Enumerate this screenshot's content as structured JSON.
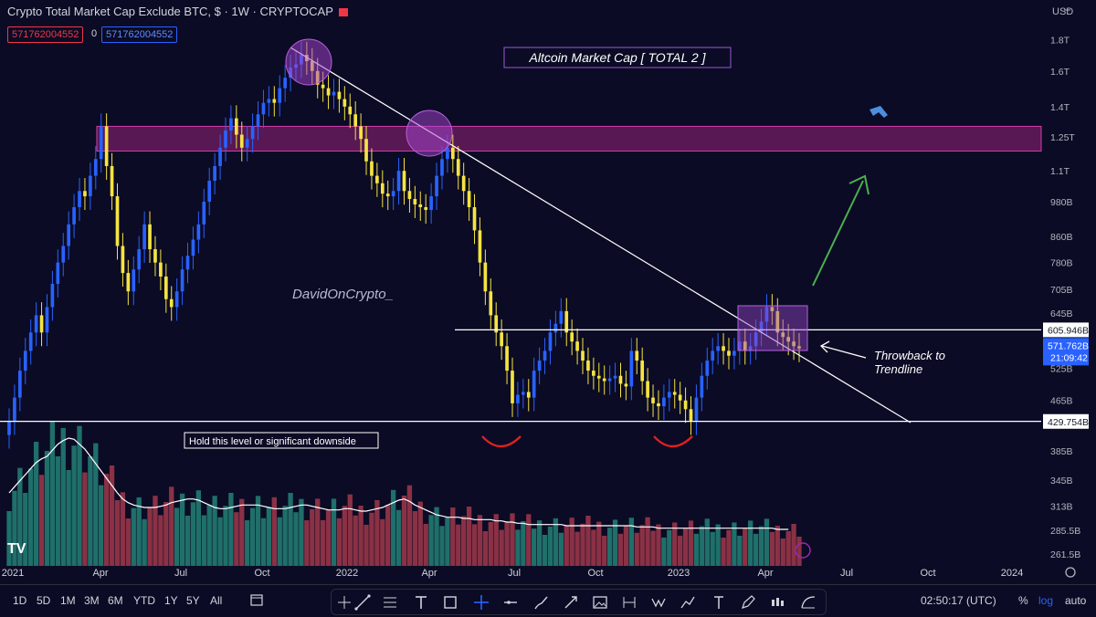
{
  "header": {
    "title": "Crypto Total Market Cap Exclude BTC, $ · 1W · CRYPTOCAP",
    "open_badge": "571762004552",
    "change_badge": "0",
    "close_badge": "571762004552"
  },
  "chart_data": {
    "type": "candlestick",
    "title": "Altcoin Market Cap [ TOTAL 2 ]",
    "watermark": "DavidOnCrypto_",
    "currency_label": "USD",
    "scale": "log",
    "ylim_b": [
      250,
      1950
    ],
    "x_ticks": [
      "2021",
      "Apr",
      "Jul",
      "Oct",
      "2022",
      "Apr",
      "Jul",
      "Oct",
      "2023",
      "Apr",
      "Jul",
      "Oct",
      "2024"
    ],
    "y_ticks": [
      {
        "value": 1800,
        "label": "1.8T"
      },
      {
        "value": 1600,
        "label": "1.6T"
      },
      {
        "value": 1400,
        "label": "1.4T"
      },
      {
        "value": 1250,
        "label": "1.25T"
      },
      {
        "value": 1100,
        "label": "1.1T"
      },
      {
        "value": 980,
        "label": "980B"
      },
      {
        "value": 860,
        "label": "860B"
      },
      {
        "value": 780,
        "label": "780B"
      },
      {
        "value": 705,
        "label": "705B"
      },
      {
        "value": 645,
        "label": "645B"
      },
      {
        "value": 525,
        "label": "525B"
      },
      {
        "value": 465,
        "label": "465B"
      },
      {
        "value": 385,
        "label": "385B"
      },
      {
        "value": 345,
        "label": "345B"
      },
      {
        "value": 313,
        "label": "313B"
      },
      {
        "value": 285.5,
        "label": "285.5B"
      },
      {
        "value": 261.5,
        "label": "261.5B"
      }
    ],
    "price_labels": [
      {
        "value": 605.946,
        "label": "605.946B",
        "style": "white"
      },
      {
        "value": 571.762,
        "label": "571.762B",
        "sub": "21:09:42",
        "style": "blue"
      },
      {
        "value": 429.754,
        "label": "429.754B",
        "style": "white"
      }
    ],
    "annotations": {
      "support_label": "Hold this level or significant downside",
      "throwback_label": "Throwback to\nTrendline"
    },
    "levels": {
      "resistance_zone": [
        1185,
        1300
      ],
      "mid_line": 606,
      "support_line": 430
    },
    "series_weekly_close_b": [
      430,
      470,
      520,
      560,
      600,
      640,
      600,
      660,
      720,
      780,
      830,
      900,
      960,
      1020,
      1000,
      1080,
      1150,
      1300,
      1120,
      1000,
      830,
      750,
      700,
      760,
      820,
      900,
      820,
      780,
      740,
      680,
      660,
      700,
      760,
      800,
      850,
      900,
      980,
      1060,
      1120,
      1200,
      1280,
      1340,
      1260,
      1200,
      1240,
      1300,
      1360,
      1420,
      1440,
      1420,
      1500,
      1560,
      1620,
      1640,
      1700,
      1660,
      1600,
      1520,
      1500,
      1460,
      1480,
      1440,
      1400,
      1360,
      1300,
      1240,
      1140,
      1080,
      1050,
      1010,
      1000,
      1020,
      1100,
      1020,
      990,
      970,
      960,
      950,
      1000,
      1080,
      1150,
      1200,
      1150,
      1080,
      1020,
      960,
      880,
      780,
      700,
      640,
      600,
      570,
      520,
      460,
      475,
      480,
      470,
      520,
      540,
      560,
      600,
      620,
      650,
      600,
      580,
      560,
      540,
      520,
      510,
      505,
      500,
      505,
      510,
      495,
      490,
      560,
      540,
      500,
      470,
      460,
      455,
      470,
      480,
      475,
      465,
      450,
      430,
      470,
      510,
      540,
      560,
      570,
      560,
      550,
      560,
      580,
      560,
      570,
      600,
      625,
      660,
      650,
      600,
      590,
      580,
      570,
      565
    ],
    "volume_max_b": 120,
    "volume_ma_b": [
      60,
      65,
      70,
      75,
      80,
      85,
      88,
      90,
      95,
      100,
      103,
      105,
      104,
      100,
      96,
      90,
      84,
      78,
      72,
      66,
      60,
      55,
      52,
      50,
      49,
      48,
      48,
      48,
      49,
      50,
      52,
      53,
      54,
      55,
      55,
      54,
      52,
      50,
      48,
      47,
      47,
      48,
      49,
      50,
      50,
      50,
      50,
      49,
      48,
      47,
      47,
      47,
      48,
      49,
      50,
      50,
      49,
      48,
      47,
      46,
      46,
      46,
      47,
      47,
      46,
      45,
      45,
      46,
      47,
      48,
      50,
      52,
      54,
      55,
      53,
      50,
      48,
      46,
      44,
      42,
      41,
      40,
      40,
      40,
      39,
      39,
      38,
      38,
      38,
      38,
      37,
      37,
      36,
      36,
      35,
      35,
      34,
      34,
      34,
      34,
      34,
      34,
      34,
      33,
      33,
      33,
      33,
      33,
      33,
      33,
      33,
      33,
      33,
      33,
      33,
      33,
      32,
      32,
      32,
      32,
      31,
      31,
      31,
      31,
      31,
      31,
      31,
      31,
      31,
      31,
      31,
      31,
      31,
      31,
      31,
      31,
      31,
      31,
      31,
      31,
      31,
      31,
      30,
      30,
      30
    ]
  },
  "toolbar": {
    "timeframes": [
      "1D",
      "5D",
      "1M",
      "3M",
      "6M",
      "YTD",
      "1Y",
      "5Y",
      "All"
    ],
    "time": "02:50:17 (UTC)",
    "percent": "%",
    "log": "log",
    "auto": "auto"
  }
}
